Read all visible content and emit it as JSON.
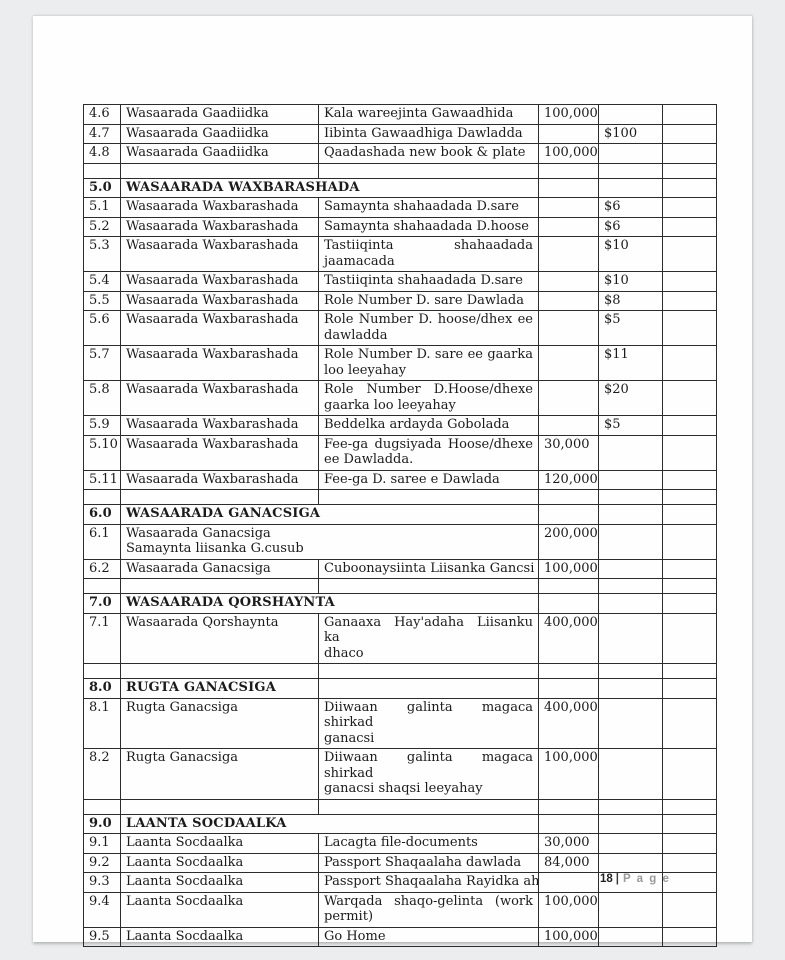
{
  "document": {
    "footer": {
      "page_number": "18",
      "divider": "|",
      "page_label": "P a g e"
    }
  },
  "colors": {
    "canvas_bg": "#ecedef",
    "page_bg": "#fefefe",
    "table_border": "#2c2c2c",
    "text": "#1b1b1b",
    "footer_gray": "#9a9a9a"
  },
  "table": {
    "columns": [
      "num",
      "ministry",
      "service",
      "amount_shilling",
      "amount_usd",
      "blank"
    ],
    "rows": [
      {
        "type": "item",
        "num": "4.6",
        "ministry": "Wasaarada Gaadiidka",
        "service": "Kala wareejinta Gawaadhida",
        "shilling": "100,000",
        "usd": ""
      },
      {
        "type": "item",
        "num": "4.7",
        "ministry": "Wasaarada Gaadiidka",
        "service": "Iibinta Gawaadhiga Dawladda",
        "shilling": "",
        "usd": "$100"
      },
      {
        "type": "item",
        "num": "4.8",
        "ministry": "Wasaarada Gaadiidka",
        "service": "Qaadashada new book & plate",
        "shilling": "100,000",
        "usd": ""
      },
      {
        "type": "spacer"
      },
      {
        "type": "section",
        "num": "5.0",
        "title": "WASAARADA WAXBARASHADA"
      },
      {
        "type": "item",
        "num": "5.1",
        "ministry": "Wasaarada Waxbarashada",
        "service": "Samaynta shahaadada D.sare",
        "shilling": "",
        "usd": "$6"
      },
      {
        "type": "item",
        "num": "5.2",
        "ministry": "Wasaarada Waxbarashada",
        "service": "Samaynta shahaadada D.hoose",
        "shilling": "",
        "usd": "$6"
      },
      {
        "type": "item",
        "num": "5.3",
        "ministry": "Wasaarada Waxbarashada",
        "service": "Tastiiqinta shahaadada\njaamacada",
        "shilling": "",
        "usd": "$10"
      },
      {
        "type": "item",
        "num": "5.4",
        "ministry": "Wasaarada Waxbarashada",
        "service": "Tastiiqinta shahaadada D.sare",
        "shilling": "",
        "usd": "$10"
      },
      {
        "type": "item",
        "num": "5.5",
        "ministry": "Wasaarada Waxbarashada",
        "service": "Role Number D. sare Dawlada",
        "shilling": "",
        "usd": "$8"
      },
      {
        "type": "item",
        "num": "5.6",
        "ministry": "Wasaarada Waxbarashada",
        "service": "Role Number D. hoose/dhex ee\ndawladda",
        "shilling": "",
        "usd": "$5"
      },
      {
        "type": "item",
        "num": "5.7",
        "ministry": "Wasaarada Waxbarashada",
        "service": "Role Number D. sare ee gaarka\nloo leeyahay",
        "shilling": "",
        "usd": "$11"
      },
      {
        "type": "item",
        "num": "5.8",
        "ministry": "Wasaarada Waxbarashada",
        "service": "Role Number D.Hoose/dhexe\ngaarka loo leeyahay",
        "shilling": "",
        "usd": "$20"
      },
      {
        "type": "item",
        "num": "5.9",
        "ministry": "Wasaarada Waxbarashada",
        "service": "Beddelka ardayda Gobolada",
        "shilling": "",
        "usd": "$5"
      },
      {
        "type": "item",
        "num": "5.10",
        "ministry": "Wasaarada Waxbarashada",
        "service": "Fee-ga dugsiyada Hoose/dhexe\nee Dawladda.",
        "shilling": "30,000",
        "usd": ""
      },
      {
        "type": "item",
        "num": "5.11",
        "ministry": "Wasaarada Waxbarashada",
        "service": "Fee-ga D. saree e Dawlada",
        "shilling": "120,000",
        "usd": ""
      },
      {
        "type": "spacer"
      },
      {
        "type": "section",
        "num": "6.0",
        "title": "WASAARADA GANACSIGA"
      },
      {
        "type": "merged",
        "num": "6.1",
        "line1": "Wasaarada Ganacsiga",
        "line2": "Samaynta liisanka G.cusub",
        "shilling": "200,000",
        "usd": ""
      },
      {
        "type": "item",
        "num": "6.2",
        "ministry": "Wasaarada Ganacsiga",
        "service": "Cuboonaysiinta Liisanka Gancsi",
        "shilling": "100,000",
        "usd": ""
      },
      {
        "type": "spacer"
      },
      {
        "type": "section",
        "num": "7.0",
        "title": "WASAARADA QORSHAYNTA"
      },
      {
        "type": "item",
        "num": "7.1",
        "ministry": "Wasaarada Qorshaynta",
        "service": "Ganaaxa Hay'adaha Liisanku ka\ndhaco",
        "shilling": "400,000",
        "usd": ""
      },
      {
        "type": "spacer"
      },
      {
        "type": "section-cell",
        "num": "8.0",
        "title": "RUGTA GANACSIGA"
      },
      {
        "type": "item",
        "num": "8.1",
        "ministry": "Rugta Ganacsiga",
        "service": "Diiwaan galinta magaca shirkad\nganacsi",
        "shilling": "400,000",
        "usd": ""
      },
      {
        "type": "item",
        "num": "8.2",
        "ministry": "Rugta Ganacsiga",
        "service": "Diiwaan galinta magaca shirkad\nganacsi shaqsi leeyahay",
        "shilling": "100,000",
        "usd": ""
      },
      {
        "type": "spacer"
      },
      {
        "type": "section",
        "num": "9.0",
        "title": "LAANTA SOCDAALKA"
      },
      {
        "type": "item",
        "num": "9.1",
        "ministry": "Laanta Socdaalka",
        "service": "Lacagta file-documents",
        "shilling": "30,000",
        "usd": ""
      },
      {
        "type": "item",
        "num": "9.2",
        "ministry": "Laanta Socdaalka",
        "service": "Passport Shaqaalaha dawlada",
        "shilling": "84,000",
        "usd": ""
      },
      {
        "type": "item",
        "num": "9.3",
        "ministry": "Laanta Socdaalka",
        "service": "Passport Shaqaalaha Rayidka ah",
        "shilling": "",
        "usd": ""
      },
      {
        "type": "item",
        "num": "9.4",
        "ministry": "Laanta Socdaalka",
        "service": "Warqada shaqo-gelinta (work\npermit)",
        "shilling": "100,000",
        "usd": ""
      },
      {
        "type": "item",
        "num": "9.5",
        "ministry": "Laanta Socdaalka",
        "service": "Go Home",
        "shilling": "100,000",
        "usd": ""
      }
    ]
  }
}
